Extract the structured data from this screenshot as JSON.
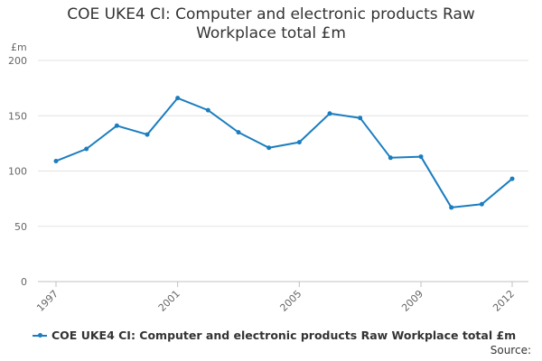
{
  "chart_data": {
    "type": "line",
    "title": "COE UKE4 CI: Computer and electronic products Raw Workplace total £m",
    "title_lines": [
      "COE UKE4 CI: Computer and electronic products Raw",
      "Workplace total £m"
    ],
    "ylabel": "£m",
    "xlabel": "",
    "ylim": [
      0,
      200
    ],
    "yticks": [
      0,
      50,
      100,
      150,
      200
    ],
    "xlim": [
      1997,
      2012
    ],
    "xticks": [
      1997,
      2001,
      2005,
      2009,
      2012
    ],
    "grid": true,
    "legend_position": "bottom-left",
    "series": [
      {
        "name": "COE UKE4 CI: Computer and electronic products Raw Workplace total £m",
        "color": "#1a7dbf",
        "x": [
          1997,
          1998,
          1999,
          2000,
          2001,
          2002,
          2003,
          2004,
          2005,
          2006,
          2007,
          2008,
          2009,
          2010,
          2011,
          2012
        ],
        "y": [
          109,
          120,
          141,
          133,
          166,
          155,
          135,
          121,
          126,
          152,
          148,
          112,
          113,
          67,
          70,
          93
        ]
      }
    ],
    "source_label": "Source:"
  }
}
